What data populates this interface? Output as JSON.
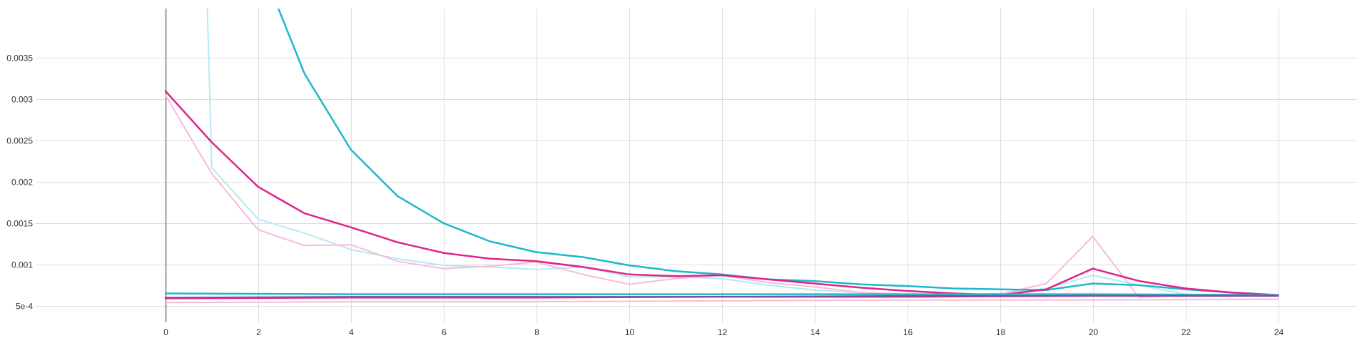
{
  "chart_data": {
    "type": "line",
    "xlim": [
      -2.8,
      25.7
    ],
    "ylim": [
      0.0003,
      0.0041
    ],
    "x_ticks": [
      "0",
      "2",
      "4",
      "6",
      "8",
      "10",
      "12",
      "14",
      "16",
      "18",
      "20",
      "22",
      "24"
    ],
    "x_tick_values": [
      0,
      2,
      4,
      6,
      8,
      10,
      12,
      14,
      16,
      18,
      20,
      22,
      24
    ],
    "y_ticks": [
      "5e-4",
      "0.001",
      "0.0015",
      "0.002",
      "0.0025",
      "0.003",
      "0.0035"
    ],
    "y_tick_values": [
      0.0005,
      0.001,
      0.0015,
      0.002,
      0.0025,
      0.003,
      0.0035
    ],
    "grid": true,
    "colors": {
      "background": "#ffffff",
      "grid": "#dcdcdc",
      "y_axis": "#9a9a9a",
      "tick_text": "#333333"
    },
    "series": [
      {
        "color": "#b2ebf2",
        "width": 2,
        "x": [
          0.9,
          1,
          2,
          3,
          4,
          5,
          6,
          7,
          8,
          9,
          10,
          11,
          12,
          13,
          14,
          15,
          16,
          17,
          18,
          19,
          20,
          21,
          22,
          23,
          24
        ],
        "values": [
          0.00415,
          0.00217,
          0.00155,
          0.00138,
          0.00118,
          0.00107,
          0.00099,
          0.00097,
          0.00094,
          0.00097,
          0.00085,
          0.00085,
          0.00083,
          0.00075,
          0.00069,
          0.00066,
          0.00064,
          0.00063,
          0.00065,
          0.00071,
          0.00087,
          0.00075,
          0.00064,
          0.00063,
          0.00063
        ]
      },
      {
        "color": "#f8bbd9",
        "width": 2,
        "x": [
          0,
          1,
          2,
          3,
          4,
          5,
          6,
          7,
          8,
          9,
          10,
          11,
          12,
          13,
          14,
          15,
          16,
          17,
          18,
          19,
          20,
          21,
          22,
          23,
          24
        ],
        "values": [
          0.00305,
          0.0021,
          0.00142,
          0.00123,
          0.00124,
          0.00104,
          0.00095,
          0.00098,
          0.00103,
          0.00088,
          0.00076,
          0.00083,
          0.00087,
          0.00078,
          0.00073,
          0.00066,
          0.00064,
          0.00062,
          0.00064,
          0.00077,
          0.00134,
          0.0006,
          0.00063,
          0.00064,
          0.00063
        ]
      },
      {
        "color": "#1eb8c8",
        "width": 2.5,
        "x": [
          2.4,
          3,
          4,
          5,
          6,
          7,
          8,
          9,
          10,
          11,
          12,
          13,
          14,
          15,
          16,
          17,
          18,
          19,
          20,
          21,
          22,
          23,
          24
        ],
        "values": [
          0.00415,
          0.00331,
          0.00239,
          0.00183,
          0.0015,
          0.00128,
          0.00115,
          0.00109,
          0.00099,
          0.00092,
          0.00088,
          0.00082,
          0.0008,
          0.00076,
          0.00074,
          0.00071,
          0.0007,
          0.00069,
          0.00077,
          0.00075,
          0.0007,
          0.00066,
          0.00063
        ]
      },
      {
        "color": "#e0238a",
        "width": 2.5,
        "x": [
          0,
          1,
          2,
          3,
          4,
          5,
          6,
          7,
          8,
          9,
          10,
          11,
          12,
          13,
          14,
          15,
          16,
          17,
          18,
          19,
          20,
          21,
          22,
          23,
          24
        ],
        "values": [
          0.0031,
          0.00248,
          0.00194,
          0.00162,
          0.00145,
          0.00127,
          0.00114,
          0.00107,
          0.00104,
          0.00097,
          0.00088,
          0.00086,
          0.00087,
          0.00082,
          0.00077,
          0.00072,
          0.00068,
          0.00065,
          0.00063,
          0.0007,
          0.00095,
          0.0008,
          0.00071,
          0.00066,
          0.00063
        ]
      },
      {
        "color": "#f8bbd9",
        "width": 2,
        "x": [
          0,
          4,
          8,
          12,
          16,
          20,
          24
        ],
        "values": [
          0.00054,
          0.00055,
          0.00055,
          0.00056,
          0.00057,
          0.00057,
          0.00058
        ]
      },
      {
        "color": "#1eb8c8",
        "width": 2.5,
        "x": [
          0,
          4,
          8,
          12,
          16,
          20,
          24
        ],
        "values": [
          0.00065,
          0.00064,
          0.00064,
          0.00064,
          0.00064,
          0.00064,
          0.00063
        ]
      },
      {
        "color": "#e0238a",
        "width": 2.5,
        "x": [
          0,
          4,
          8,
          12,
          16,
          20,
          24
        ],
        "values": [
          0.00059,
          0.0006,
          0.0006,
          0.00061,
          0.00061,
          0.00062,
          0.00062
        ]
      },
      {
        "color": "#7d4fa0",
        "width": 2,
        "x": [
          0,
          4,
          8,
          12,
          16,
          20,
          24
        ],
        "values": [
          0.0006,
          0.00061,
          0.00061,
          0.00061,
          0.00062,
          0.00062,
          0.00062
        ]
      }
    ]
  }
}
